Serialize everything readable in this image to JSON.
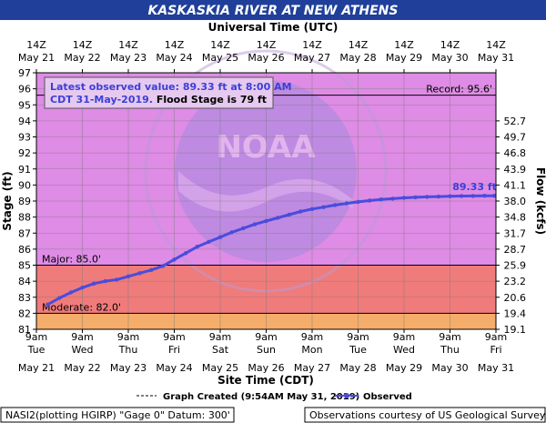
{
  "chart_data": {
    "type": "line",
    "title": "KASKASKIA RIVER AT NEW ATHENS",
    "top_axis_title": "Universal Time (UTC)",
    "top_ticks": [
      {
        "hour": "14Z",
        "date": "May 21"
      },
      {
        "hour": "14Z",
        "date": "May 22"
      },
      {
        "hour": "14Z",
        "date": "May 23"
      },
      {
        "hour": "14Z",
        "date": "May 24"
      },
      {
        "hour": "14Z",
        "date": "May 25"
      },
      {
        "hour": "14Z",
        "date": "May 26"
      },
      {
        "hour": "14Z",
        "date": "May 27"
      },
      {
        "hour": "14Z",
        "date": "May 28"
      },
      {
        "hour": "14Z",
        "date": "May 29"
      },
      {
        "hour": "14Z",
        "date": "May 30"
      },
      {
        "hour": "14Z",
        "date": "May 31"
      }
    ],
    "bottom_ticks": [
      {
        "time": "9am",
        "day": "Tue",
        "date": "May 21"
      },
      {
        "time": "9am",
        "day": "Wed",
        "date": "May 22"
      },
      {
        "time": "9am",
        "day": "Thu",
        "date": "May 23"
      },
      {
        "time": "9am",
        "day": "Fri",
        "date": "May 24"
      },
      {
        "time": "9am",
        "day": "Sat",
        "date": "May 25"
      },
      {
        "time": "9am",
        "day": "Sun",
        "date": "May 26"
      },
      {
        "time": "9am",
        "day": "Mon",
        "date": "May 27"
      },
      {
        "time": "9am",
        "day": "Tue",
        "date": "May 28"
      },
      {
        "time": "9am",
        "day": "Wed",
        "date": "May 29"
      },
      {
        "time": "9am",
        "day": "Thu",
        "date": "May 30"
      },
      {
        "time": "9am",
        "day": "Fri",
        "date": "May 31"
      }
    ],
    "xlabel": "Site Time (CDT)",
    "ylabel": "Stage (ft)",
    "y2label": "Flow (kcfs)",
    "ylim": [
      81,
      97
    ],
    "y_ticks": [
      81,
      82,
      83,
      84,
      85,
      86,
      87,
      88,
      89,
      90,
      91,
      92,
      93,
      94,
      95,
      96,
      97
    ],
    "flow_ticks": [
      {
        "stage": 81.0,
        "label": "19.1"
      },
      {
        "stage": 82.0,
        "label": "19.4"
      },
      {
        "stage": 83.0,
        "label": "20.6"
      },
      {
        "stage": 84.0,
        "label": "23.2"
      },
      {
        "stage": 85.0,
        "label": "25.9"
      },
      {
        "stage": 86.0,
        "label": "28.7"
      },
      {
        "stage": 87.0,
        "label": "31.7"
      },
      {
        "stage": 88.0,
        "label": "34.8"
      },
      {
        "stage": 89.0,
        "label": "38.0"
      },
      {
        "stage": 90.0,
        "label": "41.1"
      },
      {
        "stage": 91.0,
        "label": "43.9"
      },
      {
        "stage": 92.0,
        "label": "46.8"
      },
      {
        "stage": 93.0,
        "label": "49.7"
      },
      {
        "stage": 94.0,
        "label": "52.7"
      }
    ],
    "thresholds": [
      {
        "name": "Moderate",
        "label": "Moderate: 82.0'",
        "value": 82.0,
        "color": "#f4ad6a"
      },
      {
        "name": "Major",
        "label": "Major: 85.0'",
        "value": 85.0,
        "color": "#f07b7b"
      },
      {
        "name": "Record",
        "label": "Record: 95.6'",
        "value": 95.6
      }
    ],
    "flood_band_color": "#de8ce5",
    "series": [
      {
        "name": "Observed",
        "color": "#4a4cdc",
        "points": [
          [
            "2019-05-21 15:00",
            82.55
          ],
          [
            "2019-05-21 21:00",
            82.95
          ],
          [
            "2019-05-22 03:00",
            83.3
          ],
          [
            "2019-05-22 09:00",
            83.6
          ],
          [
            "2019-05-22 15:00",
            83.85
          ],
          [
            "2019-05-22 21:00",
            84.0
          ],
          [
            "2019-05-23 03:00",
            84.1
          ],
          [
            "2019-05-23 09:00",
            84.3
          ],
          [
            "2019-05-23 15:00",
            84.5
          ],
          [
            "2019-05-23 21:00",
            84.7
          ],
          [
            "2019-05-24 03:00",
            84.95
          ],
          [
            "2019-05-24 09:00",
            85.35
          ],
          [
            "2019-05-24 15:00",
            85.75
          ],
          [
            "2019-05-24 21:00",
            86.15
          ],
          [
            "2019-05-25 03:00",
            86.45
          ],
          [
            "2019-05-25 09:00",
            86.75
          ],
          [
            "2019-05-25 15:00",
            87.05
          ],
          [
            "2019-05-25 21:00",
            87.3
          ],
          [
            "2019-05-26 03:00",
            87.55
          ],
          [
            "2019-05-26 09:00",
            87.75
          ],
          [
            "2019-05-26 15:00",
            87.95
          ],
          [
            "2019-05-26 21:00",
            88.15
          ],
          [
            "2019-05-27 03:00",
            88.35
          ],
          [
            "2019-05-27 09:00",
            88.5
          ],
          [
            "2019-05-27 15:00",
            88.62
          ],
          [
            "2019-05-27 21:00",
            88.75
          ],
          [
            "2019-05-28 03:00",
            88.85
          ],
          [
            "2019-05-28 09:00",
            88.95
          ],
          [
            "2019-05-28 15:00",
            89.03
          ],
          [
            "2019-05-28 21:00",
            89.1
          ],
          [
            "2019-05-29 03:00",
            89.15
          ],
          [
            "2019-05-29 09:00",
            89.2
          ],
          [
            "2019-05-29 15:00",
            89.23
          ],
          [
            "2019-05-29 21:00",
            89.26
          ],
          [
            "2019-05-30 03:00",
            89.28
          ],
          [
            "2019-05-30 09:00",
            89.3
          ],
          [
            "2019-05-30 15:00",
            89.31
          ],
          [
            "2019-05-30 21:00",
            89.32
          ],
          [
            "2019-05-31 03:00",
            89.33
          ],
          [
            "2019-05-31 08:00",
            89.33
          ]
        ]
      }
    ],
    "end_label": "89.33 ft",
    "info_box": {
      "line1": "Latest observed value: 89.33 ft at 8:00 AM",
      "line2_blue": "CDT 31-May-2019.",
      "line2_black": " Flood Stage is 79 ft"
    },
    "legend": {
      "created": "Graph Created (9:54AM May 31, 2019)",
      "observed": "Observed"
    },
    "footer_left": "NASI2(plotting HGIRP) \"Gage 0\" Datum: 300'",
    "footer_right": "Observations courtesy of US Geological Survey",
    "watermark_text": "NOAA",
    "grid": true
  }
}
